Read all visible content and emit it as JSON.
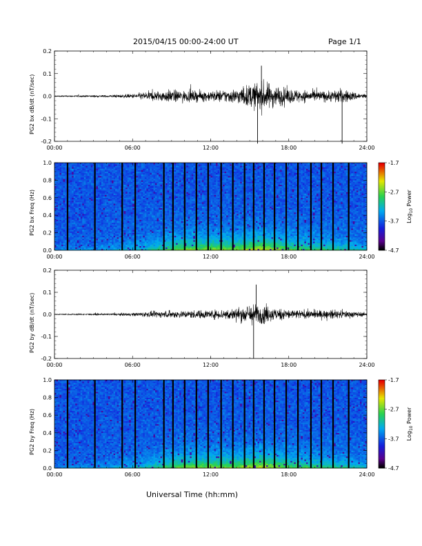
{
  "header": {
    "title": "2015/04/15  00:00-24:00 UT",
    "page": "Page 1/1"
  },
  "x_axis_label": "Universal Time (hh:mm)",
  "chart_data": [
    {
      "type": "line",
      "ylabel": "PG2 bx dB/dt (nT/sec)",
      "xlim": [
        "00:00",
        "24:00"
      ],
      "ylim": [
        -0.2,
        0.2
      ],
      "x_ticks": [
        "00:00",
        "06:00",
        "12:00",
        "18:00",
        "24:00"
      ],
      "y_ticks": [
        "-0.2",
        "-0.1",
        "0.0",
        "0.1",
        "0.2"
      ],
      "envelope_hours": [
        0,
        2,
        4,
        6,
        7,
        8,
        9,
        10,
        11,
        12,
        13,
        14,
        15,
        16,
        17,
        18,
        19,
        20,
        21,
        22,
        23,
        24
      ],
      "envelope_amplitude": [
        0.005,
        0.008,
        0.01,
        0.02,
        0.04,
        0.05,
        0.06,
        0.05,
        0.05,
        0.05,
        0.06,
        0.07,
        0.11,
        0.14,
        0.1,
        0.07,
        0.06,
        0.05,
        0.05,
        0.07,
        0.04,
        0.02
      ],
      "peak_min": -0.21,
      "peak_max": 0.15
    },
    {
      "type": "heatmap",
      "ylabel": "PG2 bx Freq (Hz)",
      "xlim": [
        "00:00",
        "24:00"
      ],
      "ylim": [
        0.0,
        1.0
      ],
      "x_ticks": [
        "00:00",
        "06:00",
        "12:00",
        "18:00",
        "24:00"
      ],
      "y_ticks": [
        "0.0",
        "0.2",
        "0.4",
        "0.6",
        "0.8",
        "1.0"
      ],
      "colorbar_label": "Log10 Power",
      "colorbar_range": [
        -4.7,
        -1.7
      ],
      "colorbar_ticks": [
        "-1.7",
        "-2.7",
        "-3.7",
        "-4.7"
      ],
      "gap_hours": [
        1.0,
        3.1,
        5.2,
        6.2,
        8.4,
        9.1,
        10.0,
        10.9,
        11.8,
        12.8,
        13.7,
        14.6,
        15.3,
        16.1,
        16.9,
        17.8,
        18.7,
        19.7,
        20.5,
        21.4,
        22.6
      ]
    },
    {
      "type": "line",
      "ylabel": "PG2 by dB/dt (nT/sec)",
      "xlim": [
        "00:00",
        "24:00"
      ],
      "ylim": [
        -0.2,
        0.2
      ],
      "x_ticks": [
        "00:00",
        "06:00",
        "12:00",
        "18:00",
        "24:00"
      ],
      "y_ticks": [
        "-0.2",
        "-0.1",
        "0.0",
        "0.1",
        "0.2"
      ],
      "envelope_hours": [
        0,
        2,
        4,
        6,
        7,
        8,
        9,
        10,
        11,
        12,
        13,
        14,
        15,
        16,
        17,
        18,
        19,
        20,
        21,
        22,
        23,
        24
      ],
      "envelope_amplitude": [
        0.004,
        0.006,
        0.008,
        0.015,
        0.025,
        0.03,
        0.035,
        0.035,
        0.04,
        0.04,
        0.05,
        0.06,
        0.1,
        0.09,
        0.06,
        0.05,
        0.04,
        0.04,
        0.04,
        0.04,
        0.03,
        0.015
      ],
      "peak_min": -0.2,
      "peak_max": 0.15
    },
    {
      "type": "heatmap",
      "ylabel": "PG2 by Freq (Hz)",
      "xlim": [
        "00:00",
        "24:00"
      ],
      "ylim": [
        0.0,
        1.0
      ],
      "x_ticks": [
        "00:00",
        "06:00",
        "12:00",
        "18:00",
        "24:00"
      ],
      "y_ticks": [
        "0.0",
        "0.2",
        "0.4",
        "0.6",
        "0.8",
        "1.0"
      ],
      "colorbar_label": "Log10 Power",
      "colorbar_range": [
        -4.7,
        -1.7
      ],
      "colorbar_ticks": [
        "-1.7",
        "-2.7",
        "-3.7",
        "-4.7"
      ],
      "gap_hours": [
        1.0,
        3.1,
        5.2,
        6.2,
        8.4,
        9.1,
        10.0,
        10.9,
        11.8,
        12.8,
        13.7,
        14.6,
        15.3,
        16.1,
        16.9,
        17.8,
        18.7,
        19.7,
        20.5,
        21.4,
        22.6
      ]
    }
  ]
}
